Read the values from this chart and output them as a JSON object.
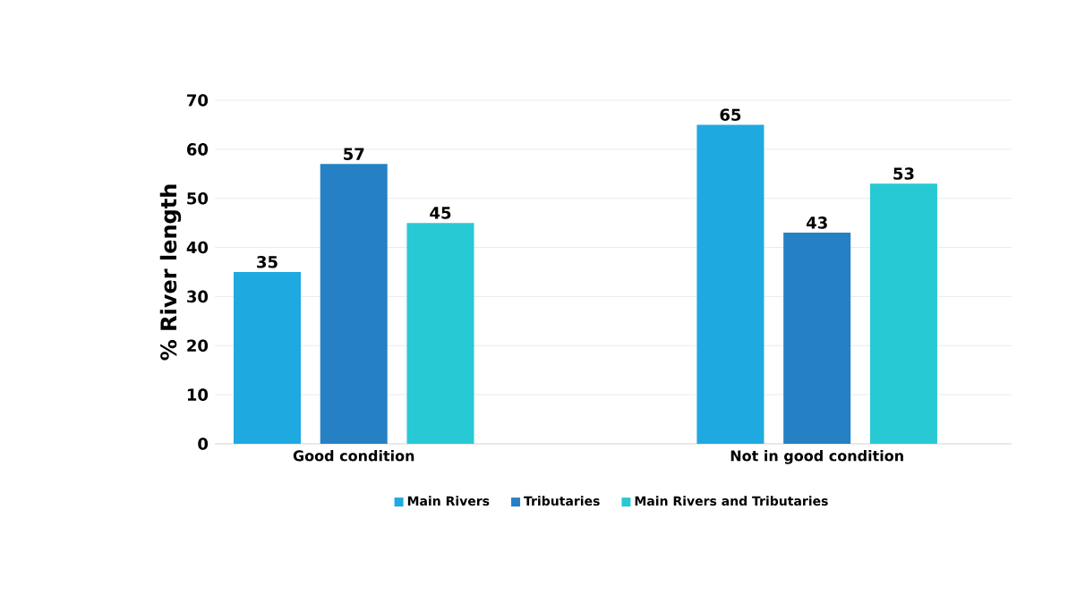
{
  "chart_data": {
    "type": "bar",
    "ylabel": "% River length",
    "categories": [
      "Good condition",
      "Not in good condition"
    ],
    "series": [
      {
        "name": "Main Rivers",
        "color": "#1fa9e1",
        "values": [
          35,
          65
        ]
      },
      {
        "name": "Tributaries",
        "color": "#2681c4",
        "values": [
          57,
          43
        ]
      },
      {
        "name": "Main Rivers and Tributaries",
        "color": "#27c9d4",
        "values": [
          45,
          53
        ]
      }
    ],
    "ylim": [
      0,
      70
    ],
    "yticks": [
      0,
      10,
      20,
      30,
      40,
      50,
      60,
      70
    ],
    "grid": "y",
    "legend": "bottom",
    "data_labels": true
  }
}
